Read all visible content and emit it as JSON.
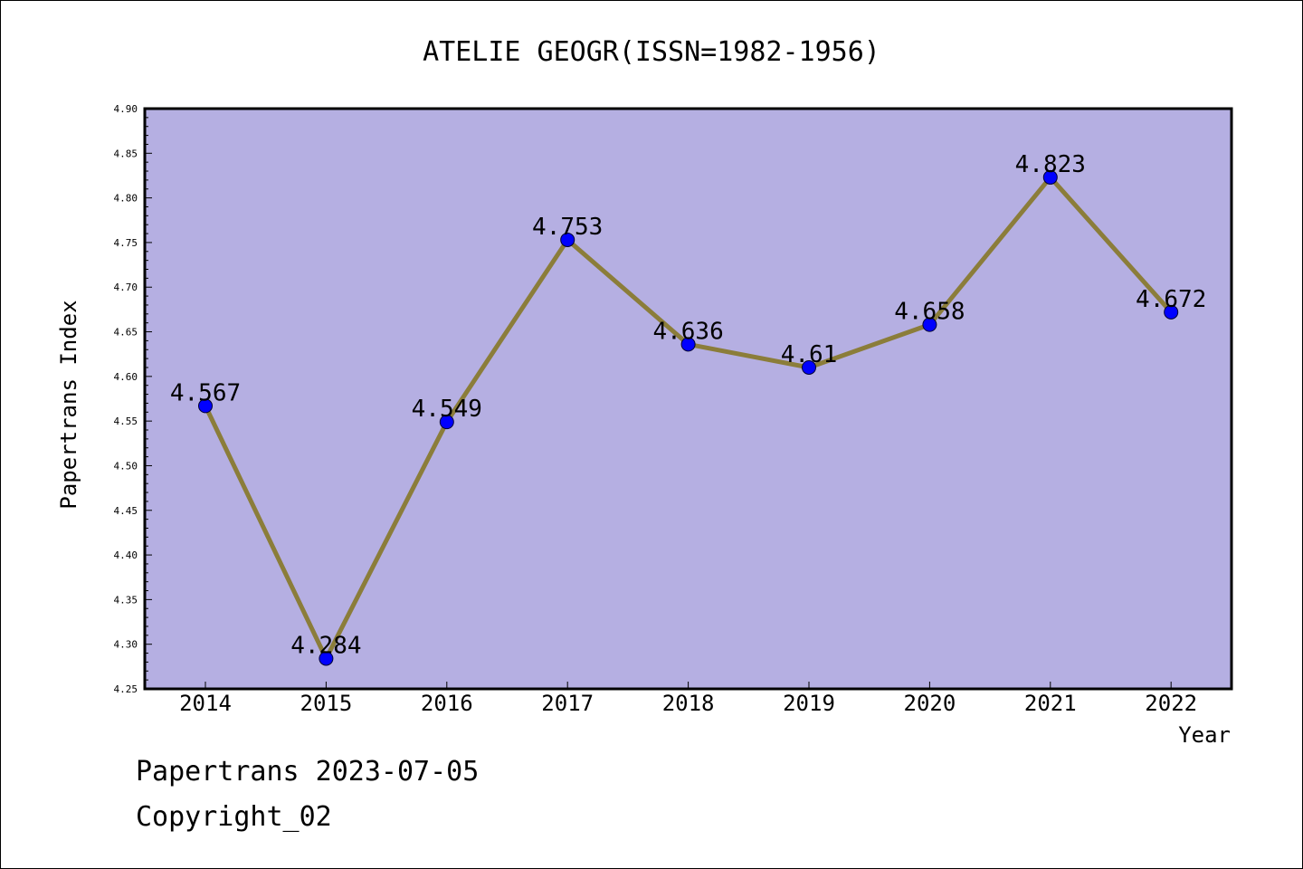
{
  "chart_data": {
    "type": "line",
    "title": "ATELIE GEOGR(ISSN=1982-1956)",
    "xlabel": "Year",
    "ylabel": "Papertrans Index",
    "categories": [
      "2014",
      "2015",
      "2016",
      "2017",
      "2018",
      "2019",
      "2020",
      "2021",
      "2022"
    ],
    "values": [
      4.567,
      4.284,
      4.549,
      4.753,
      4.636,
      4.61,
      4.658,
      4.823,
      4.672
    ],
    "data_labels": [
      "4.567",
      "4.284",
      "4.549",
      "4.753",
      "4.636",
      "4.61",
      "4.658",
      "4.823",
      "4.672"
    ],
    "ylim": [
      4.25,
      4.9
    ],
    "yticks": [
      "4.25",
      "4.30",
      "4.35",
      "4.40",
      "4.45",
      "4.50",
      "4.55",
      "4.60",
      "4.65",
      "4.70",
      "4.75",
      "4.80",
      "4.85",
      "4.90"
    ],
    "grid": false,
    "legend": "none",
    "colors": {
      "plot_background": "#b5afe2",
      "line": "#8b7d3a",
      "marker": "#0000ff",
      "axis": "#000000"
    }
  },
  "footer": {
    "line1": "Papertrans 2023-07-05",
    "line2": "Copyright_02"
  }
}
